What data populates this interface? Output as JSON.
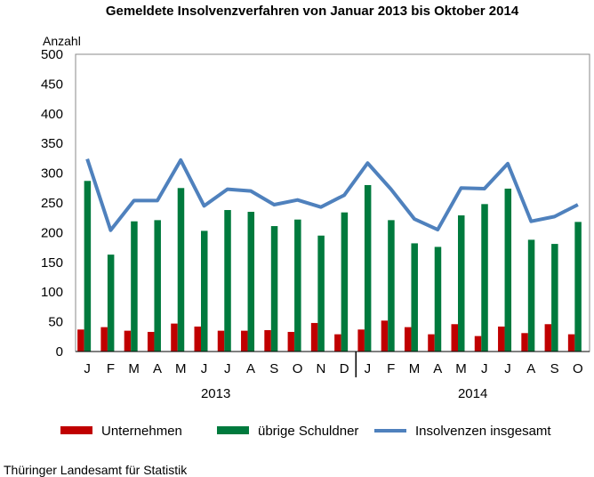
{
  "chart_data": {
    "type": "bar",
    "title": "Gemeldete Insolvenzverfahren von Januar 2013 bis Oktober 2014",
    "ylabel": "Anzahl",
    "ylim": [
      0,
      500
    ],
    "yticks": [
      0,
      50,
      100,
      150,
      200,
      250,
      300,
      350,
      400,
      450,
      500
    ],
    "categories": [
      "J",
      "F",
      "M",
      "A",
      "M",
      "J",
      "J",
      "A",
      "S",
      "O",
      "N",
      "D",
      "J",
      "F",
      "M",
      "A",
      "M",
      "J",
      "J",
      "A",
      "S",
      "O"
    ],
    "years": [
      {
        "label": "2013",
        "months": 12
      },
      {
        "label": "2014",
        "months": 10
      }
    ],
    "legend_position": "bottom",
    "series": [
      {
        "name": "Unternehmen",
        "type": "bar",
        "color": "#c00000",
        "values": [
          37,
          41,
          35,
          33,
          47,
          42,
          35,
          35,
          36,
          33,
          48,
          29,
          37,
          52,
          41,
          29,
          46,
          26,
          42,
          31,
          46,
          29
        ]
      },
      {
        "name": "übrige Schuldner",
        "type": "bar",
        "color": "#007a3d",
        "values": [
          287,
          163,
          219,
          221,
          275,
          203,
          238,
          235,
          211,
          222,
          195,
          234,
          280,
          221,
          182,
          176,
          229,
          248,
          274,
          188,
          181,
          218
        ]
      },
      {
        "name": "Insolvenzen insgesamt",
        "type": "line",
        "color": "#4f81bd",
        "values": [
          324,
          204,
          254,
          254,
          322,
          245,
          273,
          270,
          247,
          255,
          243,
          263,
          317,
          273,
          223,
          205,
          275,
          274,
          316,
          219,
          227,
          247
        ]
      }
    ]
  },
  "source": "Thüringer Landesamt für Statistik"
}
